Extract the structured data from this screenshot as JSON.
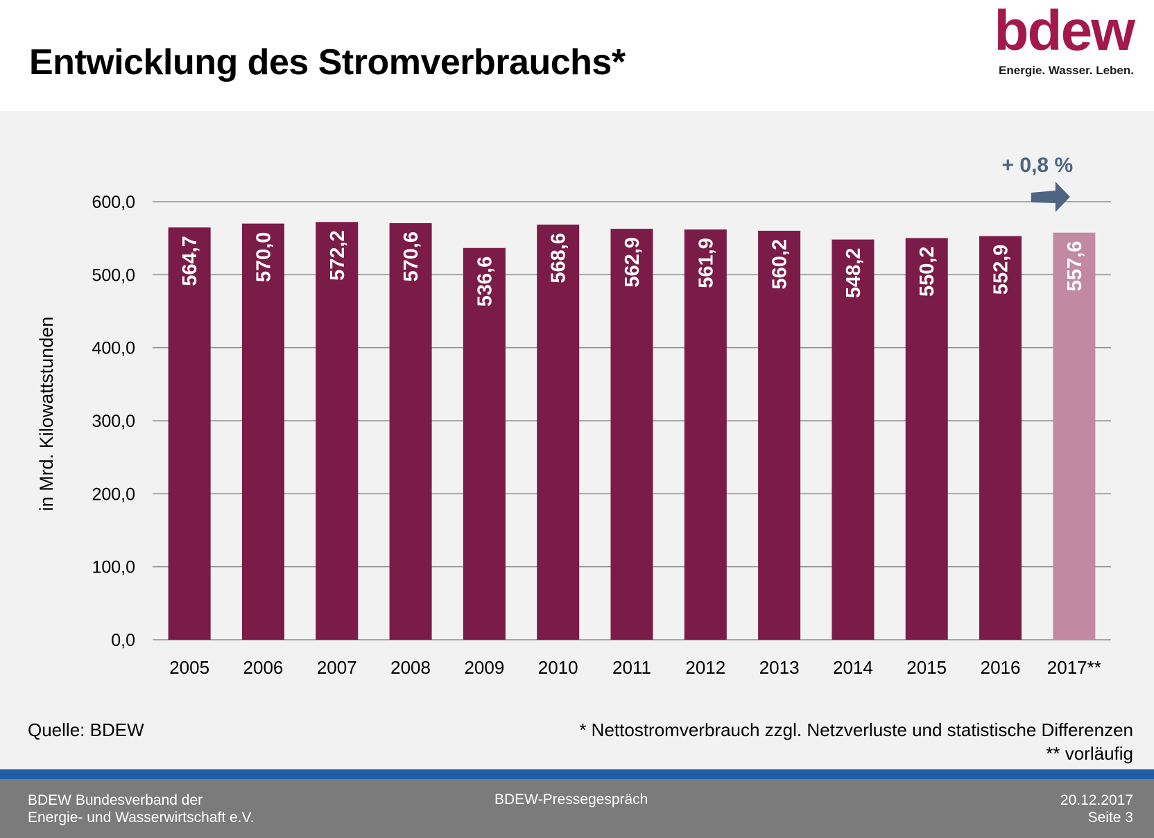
{
  "header": {
    "title": "Entwicklung des Stromverbrauchs*",
    "logo_word": "bdew",
    "logo_tagline": "Energie. Wasser. Leben."
  },
  "colors": {
    "bar": "#7a1b48",
    "bar_preliminary": "#c28aa2",
    "brand": "#a31a4a",
    "arrow": "#4d6582",
    "gridline": "#8c8c8c",
    "footer_bg": "#7b7b7b",
    "footer_line": "#1f5ea6",
    "panel_bg": "#f2f2f2"
  },
  "chart_data": {
    "type": "bar",
    "categories": [
      "2005",
      "2006",
      "2007",
      "2008",
      "2009",
      "2010",
      "2011",
      "2012",
      "2013",
      "2014",
      "2015",
      "2016",
      "2017**"
    ],
    "values": [
      564.7,
      570.0,
      572.2,
      570.6,
      536.6,
      568.6,
      562.9,
      561.9,
      560.2,
      548.2,
      550.2,
      552.9,
      557.6
    ],
    "value_labels": [
      "564,7",
      "570,0",
      "572,2",
      "570,6",
      "536,6",
      "568,6",
      "562,9",
      "561,9",
      "560,2",
      "548,2",
      "550,2",
      "552,9",
      "557,6"
    ],
    "preliminary": [
      false,
      false,
      false,
      false,
      false,
      false,
      false,
      false,
      false,
      false,
      false,
      false,
      true
    ],
    "ylabel": "in Mrd. Kilowattstunden",
    "ylim": [
      0,
      600
    ],
    "yticks": [
      0,
      100,
      200,
      300,
      400,
      500,
      600
    ],
    "ytick_labels": [
      "0,0",
      "100,0",
      "200,0",
      "300,0",
      "400,0",
      "500,0",
      "600,0"
    ],
    "grid": true,
    "annotation": "+ 0,8 %"
  },
  "source": "Quelle: BDEW",
  "notes": {
    "note1": "* Nettostromverbrauch zzgl. Netzverluste und statistische Differenzen",
    "note2": "** vorläufig"
  },
  "footer": {
    "org_line1": "BDEW Bundesverband der",
    "org_line2": "Energie- und Wasserwirtschaft e.V.",
    "event": "BDEW-Pressegespräch",
    "date": "20.12.2017",
    "page": "Seite 3"
  }
}
